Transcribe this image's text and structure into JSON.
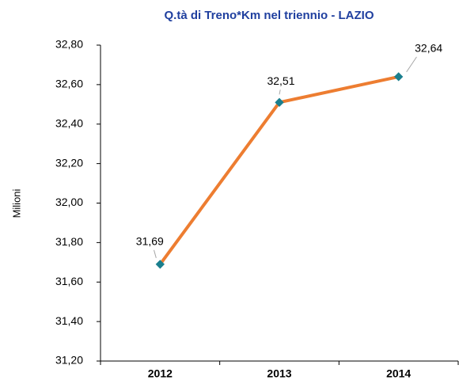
{
  "chart_data": {
    "type": "line",
    "title": "Q.tà di Treno*Km nel triennio - LAZIO",
    "y_label": "Milioni",
    "categories": [
      "2012",
      "2013",
      "2014"
    ],
    "values": [
      31.69,
      32.51,
      32.64
    ],
    "value_labels": [
      "31,69",
      "32,51",
      "32,64"
    ],
    "color": "#ed7d31",
    "marker_color": "#1a7f8e",
    "ylim": [
      31.2,
      32.8
    ],
    "yticks": [
      {
        "value": 31.2,
        "label": "31,20"
      },
      {
        "value": 31.4,
        "label": "31,40"
      },
      {
        "value": 31.6,
        "label": "31,60"
      },
      {
        "value": 31.8,
        "label": "31,80"
      },
      {
        "value": 32.0,
        "label": "32,00"
      },
      {
        "value": 32.2,
        "label": "32,20"
      },
      {
        "value": 32.4,
        "label": "32,40"
      },
      {
        "value": 32.6,
        "label": "32,60"
      },
      {
        "value": 32.8,
        "label": "32,80"
      }
    ],
    "grid": false
  }
}
